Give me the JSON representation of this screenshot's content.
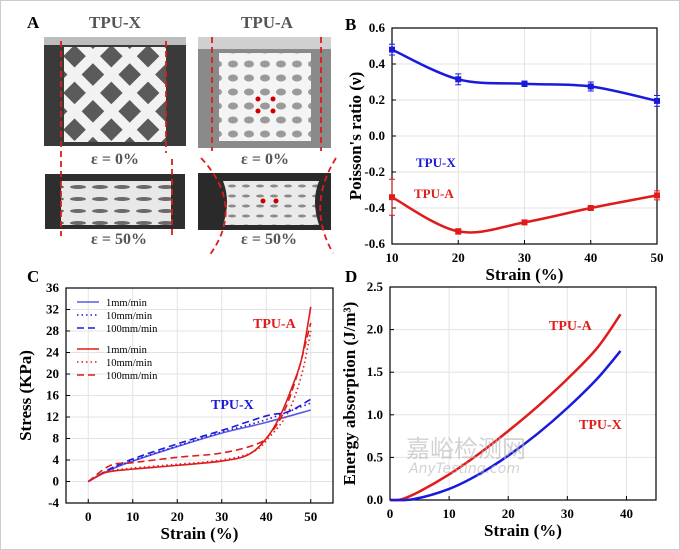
{
  "panel_a": {
    "label": "A",
    "columns": [
      "TPU-X",
      "TPU-A"
    ],
    "strain_labels": [
      "ε = 0%",
      "ε = 50%"
    ]
  },
  "watermark": {
    "cn": "嘉峪检测网",
    "en": "AnyTesting.com"
  },
  "colors": {
    "blue": "#1a1adc",
    "red": "#e01b1b",
    "light_blue": "#5a5ae8"
  },
  "chart_data": [
    {
      "panel": "B",
      "type": "line",
      "xlabel": "Strain (%)",
      "ylabel": "Poisson's ratio (ν)",
      "xlim": [
        10,
        50
      ],
      "ylim": [
        -0.6,
        0.6
      ],
      "xticks": [
        10,
        20,
        30,
        40,
        50
      ],
      "yticks": [
        "-0.6",
        "-0.4",
        "-0.2",
        "0.0",
        "0.2",
        "0.4",
        "0.6"
      ],
      "grid": true,
      "series": [
        {
          "name": "TPU-X",
          "color": "#1a1adc",
          "x": [
            10,
            20,
            30,
            40,
            50
          ],
          "y": [
            0.48,
            0.315,
            0.29,
            0.275,
            0.195
          ],
          "err": [
            0.03,
            0.03,
            0.015,
            0.025,
            0.03
          ]
        },
        {
          "name": "TPU-A",
          "color": "#e01b1b",
          "x": [
            10,
            20,
            30,
            40,
            50
          ],
          "y": [
            -0.34,
            -0.53,
            -0.48,
            -0.4,
            -0.33
          ],
          "err": [
            0.1,
            0.015,
            0.01,
            0.01,
            0.025
          ]
        }
      ]
    },
    {
      "panel": "C",
      "type": "line",
      "xlabel": "Strain (%)",
      "ylabel": "Stress (KPa)",
      "xlim": [
        -5,
        55
      ],
      "ylim": [
        -4,
        36
      ],
      "xticks": [
        0,
        10,
        20,
        30,
        40,
        50
      ],
      "yticks": [
        -4,
        0,
        4,
        8,
        12,
        16,
        20,
        24,
        28,
        32,
        36
      ],
      "grid": true,
      "legend": "top-left",
      "annotations": [
        {
          "text": "TPU-A",
          "color": "#e01b1b"
        },
        {
          "text": "TPU-X",
          "color": "#1a1adc"
        }
      ],
      "series": [
        {
          "name": "1mm/min",
          "group": "TPU-X",
          "style": "solid",
          "color": "#5a5ae8",
          "x": [
            0,
            5,
            10,
            20,
            30,
            40,
            50
          ],
          "y": [
            0,
            2.2,
            3.8,
            6.5,
            9,
            11,
            13.3
          ]
        },
        {
          "name": "10mm/min",
          "group": "TPU-X",
          "style": "dotted",
          "color": "#1a1adc",
          "x": [
            0,
            5,
            10,
            20,
            30,
            40,
            50
          ],
          "y": [
            0,
            2.3,
            3.9,
            6.6,
            9.2,
            11.5,
            14.6
          ]
        },
        {
          "name": "100mm/min",
          "group": "TPU-X",
          "style": "dashed",
          "color": "#1a1adc",
          "x": [
            0,
            5,
            10,
            20,
            30,
            40,
            45,
            50
          ],
          "y": [
            0,
            2.4,
            4.2,
            7,
            9.5,
            12.2,
            13,
            15.3
          ]
        },
        {
          "name": "1mm/min",
          "group": "TPU-A",
          "style": "solid",
          "color": "#e01b1b",
          "x": [
            0,
            4,
            10,
            20,
            30,
            36,
            40,
            43,
            46,
            48,
            50
          ],
          "y": [
            0,
            1.7,
            2.3,
            3.0,
            3.8,
            5,
            8,
            12,
            18,
            23,
            32.5
          ]
        },
        {
          "name": "10mm/min",
          "group": "TPU-A",
          "style": "dotted",
          "color": "#e01b1b",
          "x": [
            0,
            4,
            10,
            20,
            30,
            37,
            41,
            45,
            48,
            50
          ],
          "y": [
            0,
            1.8,
            2.5,
            3.2,
            4,
            5.5,
            8.5,
            13,
            20,
            28
          ]
        },
        {
          "name": "100mm/min",
          "group": "TPU-A",
          "style": "dashed",
          "color": "#e01b1b",
          "x": [
            0,
            5,
            10,
            20,
            30,
            38,
            41,
            44,
            47,
            50
          ],
          "y": [
            0,
            3,
            3.5,
            4.5,
            5.3,
            7,
            9,
            13,
            20,
            29.5
          ]
        }
      ]
    },
    {
      "panel": "D",
      "type": "line",
      "xlabel": "Strain (%)",
      "ylabel": "Energy absorption (J/m³)",
      "xlim": [
        0,
        45
      ],
      "ylim": [
        0,
        2.5
      ],
      "xticks": [
        0,
        10,
        20,
        30,
        40
      ],
      "yticks": [
        "0.0",
        "0.5",
        "1.0",
        "1.5",
        "2.0",
        "2.5"
      ],
      "grid": true,
      "annotations": [
        {
          "text": "TPU-A",
          "color": "#e01b1b"
        },
        {
          "text": "TPU-X",
          "color": "#e01b1b"
        }
      ],
      "series": [
        {
          "name": "TPU-A",
          "color": "#e01b1b",
          "x": [
            0,
            2,
            5,
            10,
            15,
            20,
            25,
            30,
            35,
            39
          ],
          "y": [
            0,
            0.01,
            0.1,
            0.3,
            0.54,
            0.81,
            1.1,
            1.42,
            1.78,
            2.18
          ]
        },
        {
          "name": "TPU-X",
          "color": "#1a1adc",
          "x": [
            0,
            4,
            10,
            15,
            20,
            25,
            30,
            35,
            39
          ],
          "y": [
            0,
            0.01,
            0.13,
            0.3,
            0.52,
            0.78,
            1.08,
            1.42,
            1.75
          ]
        }
      ]
    }
  ]
}
